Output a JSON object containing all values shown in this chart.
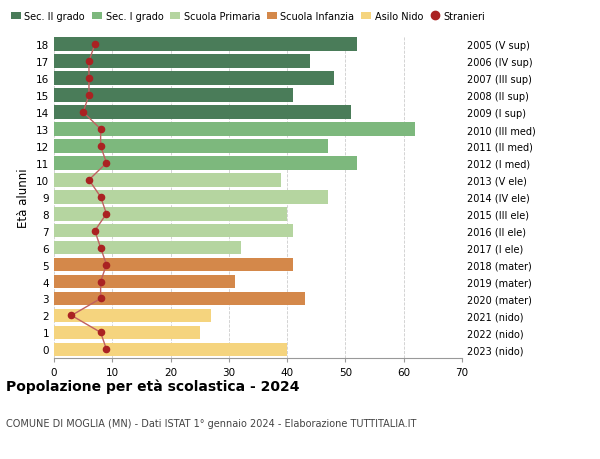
{
  "ages": [
    18,
    17,
    16,
    15,
    14,
    13,
    12,
    11,
    10,
    9,
    8,
    7,
    6,
    5,
    4,
    3,
    2,
    1,
    0
  ],
  "bar_values": [
    52,
    44,
    48,
    41,
    51,
    62,
    47,
    52,
    39,
    47,
    40,
    41,
    32,
    41,
    31,
    43,
    27,
    25,
    40
  ],
  "stranieri": [
    7,
    6,
    6,
    6,
    5,
    8,
    8,
    9,
    6,
    8,
    9,
    7,
    8,
    9,
    8,
    8,
    3,
    8,
    9
  ],
  "bar_colors": [
    "#4a7c59",
    "#4a7c59",
    "#4a7c59",
    "#4a7c59",
    "#4a7c59",
    "#7db87d",
    "#7db87d",
    "#7db87d",
    "#b5d5a0",
    "#b5d5a0",
    "#b5d5a0",
    "#b5d5a0",
    "#b5d5a0",
    "#d4884a",
    "#d4884a",
    "#d4884a",
    "#f5d47e",
    "#f5d47e",
    "#f5d47e"
  ],
  "right_labels": [
    "2005 (V sup)",
    "2006 (IV sup)",
    "2007 (III sup)",
    "2008 (II sup)",
    "2009 (I sup)",
    "2010 (III med)",
    "2011 (II med)",
    "2012 (I med)",
    "2013 (V ele)",
    "2014 (IV ele)",
    "2015 (III ele)",
    "2016 (II ele)",
    "2017 (I ele)",
    "2018 (mater)",
    "2019 (mater)",
    "2020 (mater)",
    "2021 (nido)",
    "2022 (nido)",
    "2023 (nido)"
  ],
  "legend_labels": [
    "Sec. II grado",
    "Sec. I grado",
    "Scuola Primaria",
    "Scuola Infanzia",
    "Asilo Nido",
    "Stranieri"
  ],
  "legend_colors": [
    "#4a7c59",
    "#7db87d",
    "#b5d5a0",
    "#d4884a",
    "#f5d47e",
    "#aa2222"
  ],
  "ylabel_left": "Età alunni",
  "title": "Popolazione per età scolastica - 2024",
  "subtitle": "COMUNE DI MOGLIA (MN) - Dati ISTAT 1° gennaio 2024 - Elaborazione TUTTITALIA.IT",
  "xlim": [
    0,
    70
  ],
  "xticks": [
    0,
    10,
    20,
    30,
    40,
    50,
    60,
    70
  ],
  "stranieri_color": "#aa2222",
  "stranieri_line_color": "#c06060"
}
